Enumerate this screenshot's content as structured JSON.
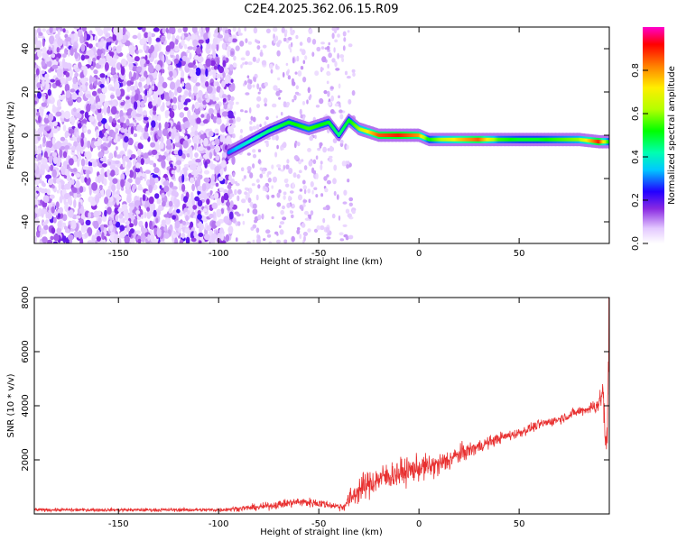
{
  "title": "C2E4.2025.362.06.15.R09",
  "chart_data": [
    {
      "type": "heatmap",
      "xlabel": "Height of straight line (km)",
      "ylabel": "Frequency (Hz)",
      "xlim": [
        -192,
        95
      ],
      "ylim": [
        -50,
        50
      ],
      "x_ticks": [
        -150,
        -100,
        -50,
        0,
        50
      ],
      "y_ticks": [
        -40,
        -20,
        0,
        20,
        40
      ],
      "colorbar": {
        "label": "Normalized spectral amplitude",
        "range": [
          0,
          1
        ],
        "ticks": [
          "0.0",
          "0.2",
          "0.4",
          "0.6",
          "0.8"
        ],
        "colormap": "white-violet-blue-cyan-green-yellow-orange-red-magenta"
      },
      "ridge": {
        "description_values": "peak frequency (Hz) vs height (km)",
        "x": [
          -95,
          -85,
          -75,
          -65,
          -55,
          -45,
          -40,
          -35,
          -30,
          -20,
          -10,
          0,
          5,
          10,
          20,
          30,
          40,
          50,
          60,
          70,
          80,
          90,
          95
        ],
        "y": [
          -8,
          -3,
          2,
          6,
          3,
          6,
          0,
          7,
          3,
          0,
          0,
          0,
          -2,
          -2,
          -2,
          -2,
          -2,
          -2,
          -2,
          -2,
          -2,
          -3,
          -3
        ],
        "amplitude": [
          0.3,
          0.4,
          0.45,
          0.5,
          0.55,
          0.5,
          0.45,
          0.5,
          0.6,
          0.85,
          0.9,
          0.8,
          0.5,
          0.6,
          0.75,
          0.85,
          0.55,
          0.5,
          0.5,
          0.55,
          0.6,
          0.9,
          0.5
        ]
      }
    },
    {
      "type": "line",
      "xlabel": "Height of straight line (km)",
      "ylabel": "SNR (10 * v/v)",
      "xlim": [
        -192,
        95
      ],
      "ylim": [
        0,
        8000
      ],
      "x_ticks": [
        -150,
        -100,
        -50,
        0,
        50
      ],
      "y_ticks": [
        2000,
        4000,
        6000,
        8000
      ],
      "series": [
        {
          "color": "#e83030",
          "x": [
            -192,
            -150,
            -100,
            -80,
            -70,
            -60,
            -50,
            -42,
            -38,
            -35,
            -30,
            -20,
            -10,
            0,
            10,
            20,
            30,
            40,
            50,
            60,
            70,
            80,
            85,
            88,
            90,
            92,
            93,
            94,
            95
          ],
          "y": [
            150,
            150,
            150,
            250,
            350,
            450,
            400,
            300,
            250,
            500,
            900,
            1300,
            1500,
            1700,
            1800,
            2200,
            2500,
            2800,
            3000,
            3300,
            3500,
            3800,
            3900,
            4000,
            4100,
            4600,
            2200,
            3000,
            8000
          ],
          "noise": [
            60,
            60,
            70,
            120,
            150,
            170,
            170,
            120,
            150,
            350,
            500,
            500,
            500,
            450,
            450,
            350,
            250,
            200,
            180,
            170,
            170,
            180,
            200,
            300,
            400,
            500,
            900,
            1200,
            1500
          ]
        }
      ]
    }
  ]
}
